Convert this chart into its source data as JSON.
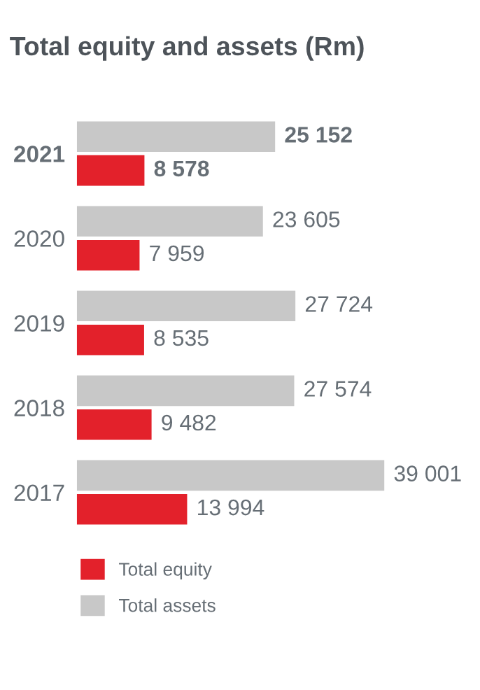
{
  "chart_data": {
    "type": "bar",
    "orientation": "horizontal",
    "title": "Total equity and assets (Rm)",
    "categories": [
      "2021",
      "2020",
      "2019",
      "2018",
      "2017"
    ],
    "series": [
      {
        "name": "Total equity",
        "color": "#e3212b",
        "values": [
          8578,
          7959,
          8535,
          9482,
          13994
        ],
        "value_labels": [
          "8 578",
          "7 959",
          "8 535",
          "9 482",
          "13 994"
        ]
      },
      {
        "name": "Total assets",
        "color": "#c8c8c8",
        "values": [
          25152,
          23605,
          27724,
          27574,
          39001
        ],
        "value_labels": [
          "25 152",
          "23 605",
          "27 724",
          "27 574",
          "39 001"
        ]
      }
    ],
    "legend": "bottom left",
    "grid": false
  }
}
